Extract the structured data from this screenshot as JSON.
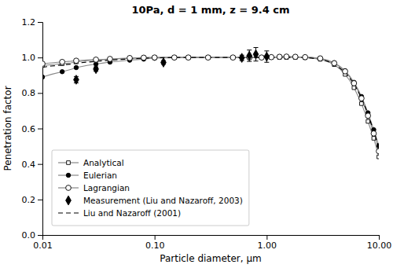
{
  "chart_data": {
    "type": "line",
    "title": "10Pa, d = 1 mm, z = 9.4 cm",
    "x_label": "Particle diameter, μm",
    "y_label": "Penetration factor",
    "log": "x",
    "grid": false,
    "legend": "lower left",
    "xlim": [
      0.01,
      10.0
    ],
    "ylim": [
      0.0,
      1.2
    ],
    "xticks": [
      0.01,
      {
        "value": 0.1,
        "label": "0.10"
      },
      {
        "value": 1.0,
        "label": "1.00"
      },
      {
        "value": 10.0,
        "label": "10.00"
      }
    ],
    "yticks": [
      {
        "value": 0.0,
        "label": "0.0"
      },
      0.2,
      0.4,
      0.6,
      0.8,
      {
        "value": 1.0,
        "label": "1.0"
      },
      1.2
    ],
    "series": [
      {
        "name": "Analytical",
        "type": "line",
        "color": "#888888",
        "marker": "square-open",
        "line_style": "solid",
        "x": [
          0.01,
          0.012,
          0.015,
          0.018,
          0.02,
          0.025,
          0.03,
          0.035,
          0.04,
          0.05,
          0.06,
          0.07,
          0.08,
          0.09,
          0.1,
          0.12,
          0.15,
          0.18,
          0.2,
          0.25,
          0.3,
          0.4,
          0.5,
          0.6,
          0.7,
          0.8,
          0.9,
          1.0,
          1.1,
          1.2,
          1.3,
          1.4,
          1.5,
          1.6,
          1.8,
          2.0,
          2.2,
          2.5,
          3.0,
          3.5,
          4.0,
          4.5,
          5.0,
          5.5,
          6.0,
          6.5,
          7.0,
          7.5,
          8.0,
          8.5,
          9.0,
          9.5,
          10.0
        ],
        "values": [
          0.955,
          0.96,
          0.965,
          0.97,
          0.975,
          0.982,
          0.986,
          0.988,
          0.99,
          0.993,
          0.995,
          0.997,
          0.998,
          0.999,
          1.0,
          1.0,
          1.0,
          1.0,
          1.0,
          1.0,
          1.0,
          1.0,
          1.0,
          1.0,
          1.0,
          1.0,
          1.0,
          1.0,
          1.0,
          1.0,
          1.0,
          1.0,
          1.0,
          1.0,
          1.0,
          1.0,
          0.999,
          0.997,
          0.99,
          0.978,
          0.96,
          0.935,
          0.905,
          0.87,
          0.83,
          0.785,
          0.74,
          0.69,
          0.64,
          0.59,
          0.545,
          0.492,
          0.44
        ]
      },
      {
        "name": "Eulerian",
        "type": "line",
        "color": "#888888",
        "marker": "circle-filled",
        "line_style": "solid",
        "x": [
          0.01,
          0.012,
          0.015,
          0.018,
          0.02,
          0.025,
          0.03,
          0.035,
          0.04,
          0.05,
          0.06,
          0.07,
          0.08,
          0.09,
          0.1,
          0.12,
          0.15,
          0.18,
          0.2,
          0.25,
          0.3,
          0.4,
          0.5,
          0.6,
          0.7,
          0.8,
          0.9,
          1.0,
          1.1,
          1.2,
          1.3,
          1.4,
          1.5,
          1.6,
          1.8,
          2.0,
          2.2,
          2.5,
          3.0,
          3.5,
          4.0,
          4.5,
          5.0,
          5.5,
          6.0,
          6.5,
          7.0,
          7.5,
          8.0,
          8.5,
          9.0,
          9.5,
          10.0
        ],
        "values": [
          0.89,
          0.905,
          0.92,
          0.933,
          0.943,
          0.955,
          0.963,
          0.969,
          0.974,
          0.98,
          0.985,
          0.988,
          0.991,
          0.994,
          0.996,
          0.998,
          0.999,
          1.0,
          1.0,
          1.0,
          1.0,
          1.0,
          1.0,
          1.0,
          1.0,
          1.0,
          1.0,
          1.0,
          1.002,
          1.003,
          1.004,
          1.005,
          1.005,
          1.005,
          1.004,
          1.003,
          1.002,
          1.0,
          0.995,
          0.985,
          0.97,
          0.95,
          0.925,
          0.895,
          0.86,
          0.822,
          0.78,
          0.735,
          0.688,
          0.64,
          0.593,
          0.548,
          0.502
        ]
      },
      {
        "name": "Lagrangian",
        "type": "line",
        "color": "#888888",
        "marker": "circle-open",
        "line_style": "solid",
        "x": [
          0.01,
          0.012,
          0.015,
          0.018,
          0.02,
          0.025,
          0.03,
          0.035,
          0.04,
          0.05,
          0.06,
          0.07,
          0.08,
          0.09,
          0.1,
          0.12,
          0.15,
          0.18,
          0.2,
          0.25,
          0.3,
          0.4,
          0.5,
          0.6,
          0.7,
          0.8,
          0.9,
          1.0,
          1.1,
          1.2,
          1.3,
          1.4,
          1.5,
          1.6,
          1.8,
          2.0,
          2.2,
          2.5,
          3.0,
          3.5,
          4.0,
          4.5,
          5.0,
          5.5,
          6.0,
          6.5,
          7.0,
          7.5,
          8.0,
          8.5,
          9.0,
          9.5,
          10.0
        ],
        "values": [
          0.965,
          0.97,
          0.975,
          0.979,
          0.982,
          0.986,
          0.988,
          0.99,
          0.992,
          0.995,
          0.997,
          0.998,
          0.999,
          1.0,
          1.0,
          1.0,
          1.0,
          1.0,
          1.0,
          1.0,
          1.0,
          1.0,
          1.0,
          1.0,
          1.0,
          1.0,
          1.0,
          1.0,
          1.002,
          1.003,
          1.004,
          1.005,
          1.005,
          1.005,
          1.004,
          1.003,
          1.002,
          1.0,
          0.995,
          0.983,
          0.968,
          0.948,
          0.922,
          0.89,
          0.855,
          0.815,
          0.77,
          0.722,
          0.672,
          0.622,
          0.572,
          0.522,
          0.472
        ]
      },
      {
        "name": "Measurement (Liu and Nazaroff, 2003)",
        "type": "scatter",
        "color": "#000000",
        "marker": "diamond",
        "x": [
          0.02,
          0.03,
          0.12,
          0.6,
          0.7,
          0.8,
          1.0
        ],
        "values": [
          0.875,
          0.935,
          0.972,
          0.998,
          1.01,
          1.018,
          1.005
        ],
        "errors": [
          0.018,
          0.012,
          0.01,
          0.015,
          0.032,
          0.038,
          0.032
        ]
      },
      {
        "name": "Liu and Nazaroff (2001)",
        "type": "line",
        "color": "#000000",
        "marker": "none",
        "line_style": "dashed",
        "x": [
          0.01,
          0.012,
          0.015,
          0.018,
          0.02,
          0.025,
          0.03,
          0.035,
          0.04,
          0.05,
          0.06,
          0.07,
          0.08,
          0.09,
          0.1,
          0.12,
          0.15,
          0.18,
          0.2,
          0.25,
          0.3,
          0.4,
          0.5,
          0.6,
          0.7,
          0.8,
          0.9,
          1.0,
          1.1,
          1.2,
          1.3,
          1.4,
          1.5,
          1.6,
          1.8,
          2.0,
          2.2,
          2.5,
          3.0,
          3.5,
          4.0,
          4.5,
          5.0,
          5.5,
          6.0,
          6.5,
          7.0,
          7.5,
          8.0,
          8.5,
          9.0,
          9.5,
          10.0
        ],
        "values": [
          0.945,
          0.952,
          0.958,
          0.963,
          0.968,
          0.974,
          0.978,
          0.982,
          0.985,
          0.989,
          0.992,
          0.994,
          0.996,
          0.997,
          0.998,
          0.999,
          1.0,
          1.0,
          1.0,
          1.0,
          1.0,
          1.0,
          1.0,
          1.0,
          1.0,
          1.0,
          1.0,
          1.0,
          1.0,
          1.0,
          1.0,
          1.0,
          1.0,
          1.0,
          1.0,
          1.0,
          0.999,
          0.997,
          0.99,
          0.978,
          0.962,
          0.94,
          0.915,
          0.884,
          0.85,
          0.812,
          0.77,
          0.726,
          0.68,
          0.632,
          0.584,
          0.538,
          0.492
        ]
      }
    ]
  }
}
